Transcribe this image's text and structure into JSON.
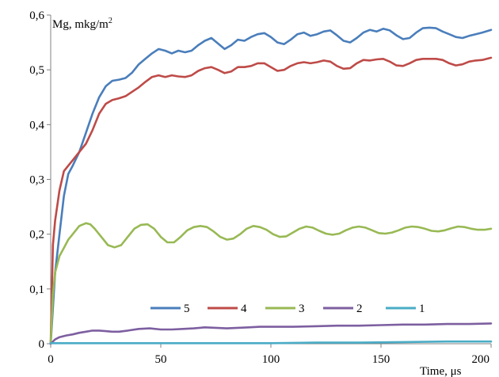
{
  "chart_data": {
    "type": "line",
    "title": "",
    "ylabel_main": "Mg, mkg/m",
    "ylabel_sup": "2",
    "xlabel": "Time, μs",
    "xlim": [
      0,
      200
    ],
    "ylim": [
      0,
      0.6
    ],
    "xticks": [
      0,
      50,
      100,
      150,
      200
    ],
    "xtick_labels": [
      "0",
      "50",
      "100",
      "150",
      "200"
    ],
    "yticks": [
      0,
      0.1,
      0.2,
      0.3,
      0.4,
      0.5,
      0.6
    ],
    "ytick_labels": [
      "0",
      "0,1",
      "0,2",
      "0,3",
      "0,4",
      "0,5",
      "0,6"
    ],
    "grid": false,
    "legend_position": "bottom-inside",
    "series": [
      {
        "name": "5",
        "color": "#4a7ebb",
        "x": [
          0,
          2,
          4,
          6,
          8,
          10,
          13,
          16,
          19,
          22,
          25,
          28,
          31,
          34,
          37,
          40,
          43,
          46,
          49,
          52,
          55,
          58,
          61,
          64,
          67,
          70,
          73,
          76,
          79,
          82,
          85,
          88,
          91,
          94,
          97,
          100,
          103,
          106,
          109,
          112,
          115,
          118,
          121,
          124,
          127,
          130,
          133,
          136,
          139,
          142,
          145,
          148,
          151,
          154,
          157,
          160,
          163,
          166,
          169,
          172,
          175,
          178,
          181,
          184,
          187,
          190,
          193,
          196,
          200
        ],
        "y": [
          0,
          0.13,
          0.2,
          0.27,
          0.31,
          0.325,
          0.35,
          0.385,
          0.42,
          0.45,
          0.47,
          0.48,
          0.482,
          0.485,
          0.495,
          0.51,
          0.52,
          0.53,
          0.538,
          0.535,
          0.53,
          0.535,
          0.532,
          0.535,
          0.545,
          0.553,
          0.558,
          0.548,
          0.538,
          0.545,
          0.555,
          0.553,
          0.56,
          0.565,
          0.567,
          0.56,
          0.55,
          0.547,
          0.555,
          0.565,
          0.568,
          0.562,
          0.565,
          0.57,
          0.572,
          0.563,
          0.553,
          0.55,
          0.558,
          0.568,
          0.573,
          0.57,
          0.575,
          0.572,
          0.563,
          0.556,
          0.558,
          0.568,
          0.576,
          0.577,
          0.576,
          0.57,
          0.565,
          0.56,
          0.558,
          0.562,
          0.565,
          0.568,
          0.573
        ]
      },
      {
        "name": "4",
        "color": "#be4b48",
        "x": [
          0,
          1,
          2,
          4,
          6,
          8,
          10,
          13,
          16,
          19,
          22,
          25,
          28,
          31,
          34,
          37,
          40,
          43,
          46,
          49,
          52,
          55,
          58,
          61,
          64,
          67,
          70,
          73,
          76,
          79,
          82,
          85,
          88,
          91,
          94,
          97,
          100,
          103,
          106,
          109,
          112,
          115,
          118,
          121,
          124,
          127,
          130,
          133,
          136,
          139,
          142,
          145,
          148,
          151,
          154,
          157,
          160,
          163,
          166,
          169,
          172,
          175,
          178,
          181,
          184,
          187,
          190,
          193,
          196,
          200
        ],
        "y": [
          0,
          0.18,
          0.225,
          0.28,
          0.315,
          0.325,
          0.335,
          0.35,
          0.365,
          0.39,
          0.42,
          0.438,
          0.445,
          0.448,
          0.452,
          0.46,
          0.468,
          0.478,
          0.487,
          0.49,
          0.487,
          0.49,
          0.488,
          0.487,
          0.49,
          0.498,
          0.503,
          0.505,
          0.5,
          0.494,
          0.497,
          0.505,
          0.505,
          0.507,
          0.512,
          0.512,
          0.505,
          0.498,
          0.5,
          0.507,
          0.512,
          0.514,
          0.512,
          0.514,
          0.517,
          0.515,
          0.507,
          0.502,
          0.503,
          0.512,
          0.518,
          0.517,
          0.519,
          0.52,
          0.515,
          0.508,
          0.507,
          0.512,
          0.518,
          0.52,
          0.52,
          0.52,
          0.518,
          0.512,
          0.508,
          0.51,
          0.515,
          0.517,
          0.518,
          0.522
        ]
      },
      {
        "name": "3",
        "color": "#98b954",
        "x": [
          0,
          1,
          2,
          4,
          6,
          8,
          10,
          13,
          16,
          18,
          20,
          23,
          26,
          29,
          32,
          35,
          38,
          41,
          44,
          47,
          50,
          53,
          56,
          59,
          62,
          65,
          68,
          71,
          74,
          77,
          80,
          83,
          86,
          89,
          92,
          95,
          98,
          101,
          104,
          107,
          110,
          113,
          116,
          119,
          122,
          125,
          128,
          131,
          134,
          137,
          140,
          143,
          146,
          149,
          152,
          155,
          158,
          161,
          164,
          167,
          170,
          173,
          176,
          179,
          182,
          185,
          188,
          191,
          194,
          197,
          200
        ],
        "y": [
          0,
          0.09,
          0.13,
          0.16,
          0.175,
          0.19,
          0.2,
          0.215,
          0.22,
          0.218,
          0.21,
          0.195,
          0.18,
          0.176,
          0.18,
          0.195,
          0.21,
          0.217,
          0.218,
          0.21,
          0.195,
          0.185,
          0.185,
          0.195,
          0.207,
          0.213,
          0.215,
          0.213,
          0.205,
          0.195,
          0.19,
          0.192,
          0.2,
          0.21,
          0.215,
          0.213,
          0.208,
          0.2,
          0.195,
          0.196,
          0.203,
          0.21,
          0.214,
          0.212,
          0.206,
          0.201,
          0.199,
          0.201,
          0.207,
          0.212,
          0.214,
          0.212,
          0.207,
          0.202,
          0.201,
          0.203,
          0.207,
          0.212,
          0.214,
          0.213,
          0.21,
          0.206,
          0.205,
          0.207,
          0.211,
          0.214,
          0.213,
          0.21,
          0.208,
          0.208,
          0.21
        ]
      },
      {
        "name": "2",
        "color": "#7d5fa0",
        "x": [
          0,
          2,
          4,
          7,
          10,
          13,
          16,
          19,
          22,
          25,
          28,
          31,
          35,
          40,
          45,
          50,
          55,
          60,
          65,
          70,
          75,
          80,
          85,
          90,
          95,
          100,
          110,
          120,
          130,
          140,
          150,
          160,
          170,
          180,
          190,
          200
        ],
        "y": [
          0,
          0.008,
          0.012,
          0.015,
          0.017,
          0.02,
          0.022,
          0.024,
          0.024,
          0.023,
          0.022,
          0.022,
          0.024,
          0.027,
          0.028,
          0.026,
          0.026,
          0.027,
          0.028,
          0.03,
          0.029,
          0.028,
          0.029,
          0.03,
          0.031,
          0.031,
          0.031,
          0.032,
          0.033,
          0.033,
          0.034,
          0.035,
          0.035,
          0.036,
          0.036,
          0.037
        ]
      },
      {
        "name": "1",
        "color": "#4aacc6",
        "x": [
          0,
          50,
          100,
          120,
          140,
          160,
          180,
          200
        ],
        "y": [
          0.001,
          0.001,
          0.001,
          0.002,
          0.002,
          0.003,
          0.004,
          0.004
        ]
      }
    ]
  }
}
